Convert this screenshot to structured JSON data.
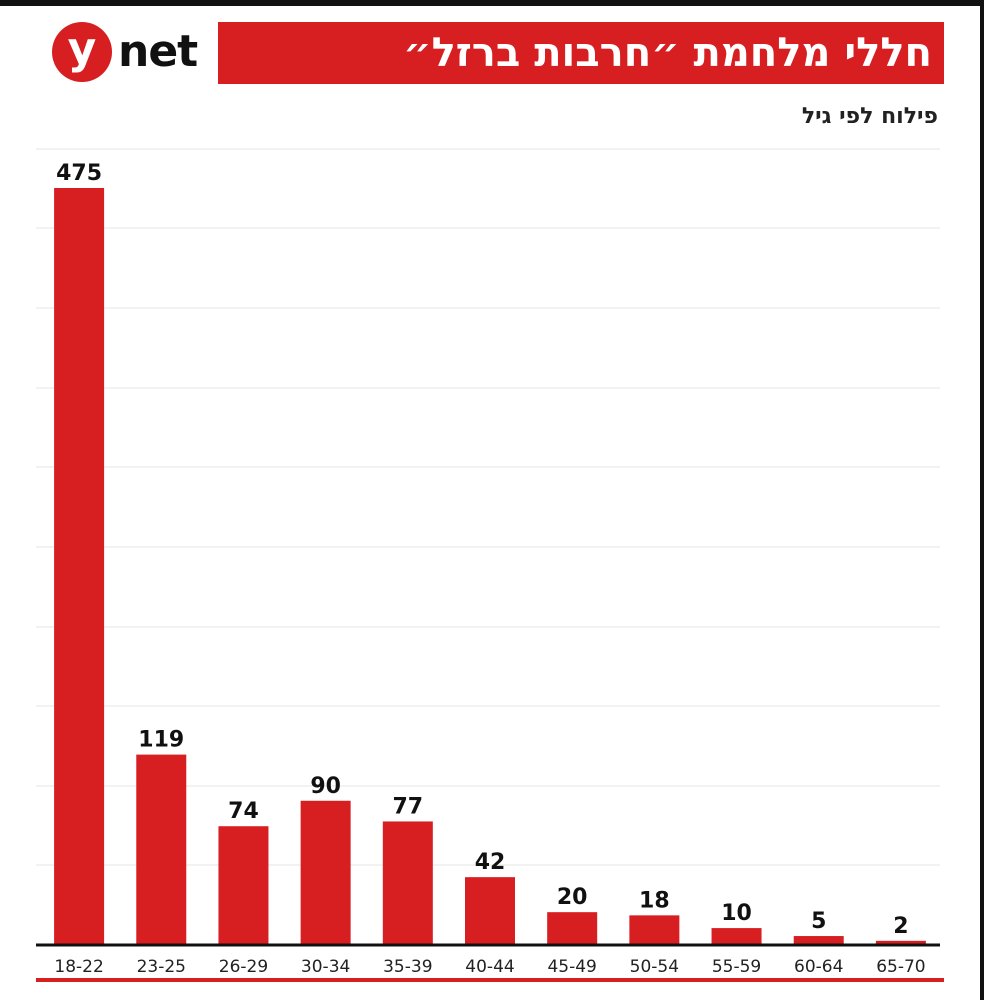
{
  "brand": {
    "logo_letter": "y",
    "logo_word": "net"
  },
  "header": {
    "title": "חללי מלחמת ״חרבות ברזל״",
    "subtitle": "פילוח לפי גיל"
  },
  "colors": {
    "accent": "#d71f22",
    "text": "#111111",
    "gridline": "#e6e6e6",
    "border": "#111111"
  },
  "chart_data": {
    "type": "bar",
    "title": "חללי מלחמת ״חרבות ברזל״",
    "subtitle": "פילוח לפי גיל",
    "categories": [
      "18-22",
      "23-25",
      "26-29",
      "30-34",
      "35-39",
      "40-44",
      "45-49",
      "50-54",
      "55-59",
      "60-64",
      "65-70"
    ],
    "values": [
      475,
      119,
      74,
      90,
      77,
      42,
      20,
      18,
      10,
      5,
      2
    ],
    "xlabel": "",
    "ylabel": "",
    "ylim": [
      0,
      475
    ],
    "grid": true,
    "legend": "none"
  }
}
